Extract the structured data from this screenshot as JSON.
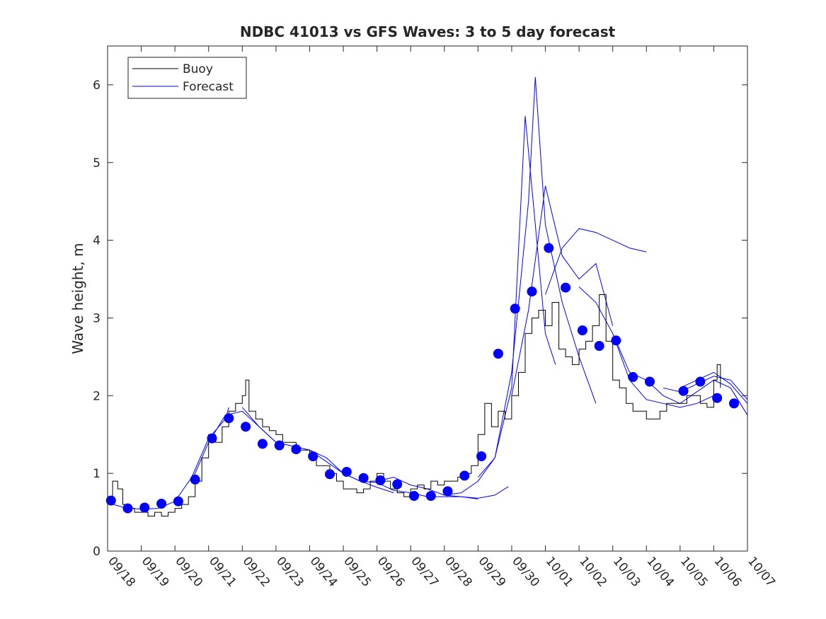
{
  "chart_data": {
    "type": "line",
    "title": "NDBC 41013 vs GFS Waves: 3 to 5 day forecast",
    "xlabel": "",
    "ylabel": "Wave height, m",
    "xlim": [
      0,
      19
    ],
    "ylim": [
      0,
      6.5
    ],
    "x_tick_labels": [
      "09/18",
      "09/19",
      "09/20",
      "09/21",
      "09/22",
      "09/23",
      "09/24",
      "09/25",
      "09/26",
      "09/27",
      "09/28",
      "09/29",
      "09/30",
      "10/01",
      "10/02",
      "10/03",
      "10/04",
      "10/05",
      "10/06",
      "10/07"
    ],
    "y_ticks": [
      0,
      1,
      2,
      3,
      4,
      5,
      6
    ],
    "legend": {
      "position": "top-left",
      "entries": [
        "Buoy",
        "Forecast"
      ]
    },
    "colors": {
      "buoy": "#000000",
      "forecast": "#0000ff",
      "axes": "#262626"
    },
    "buoy_series": {
      "name": "Buoy",
      "x": [
        0.0,
        0.15,
        0.3,
        0.45,
        0.6,
        0.8,
        1.0,
        1.2,
        1.4,
        1.6,
        1.8,
        2.0,
        2.2,
        2.4,
        2.6,
        2.8,
        3.0,
        3.2,
        3.4,
        3.6,
        3.8,
        4.0,
        4.1,
        4.2,
        4.4,
        4.6,
        4.8,
        5.0,
        5.2,
        5.4,
        5.6,
        5.8,
        6.0,
        6.2,
        6.4,
        6.6,
        6.8,
        7.0,
        7.2,
        7.4,
        7.6,
        7.8,
        8.0,
        8.2,
        8.4,
        8.6,
        8.8,
        9.0,
        9.2,
        9.4,
        9.6,
        9.8,
        10.0,
        10.2,
        10.4,
        10.6,
        10.8,
        11.0,
        11.2,
        11.4,
        11.6,
        11.8,
        12.0,
        12.2,
        12.4,
        12.6,
        12.8,
        13.0,
        13.2,
        13.4,
        13.6,
        13.8,
        14.0,
        14.2,
        14.4,
        14.6,
        14.8,
        15.0,
        15.2,
        15.4,
        15.6,
        15.8,
        16.0,
        16.2,
        16.4,
        16.6,
        16.8,
        17.0,
        17.2,
        17.4,
        17.6,
        17.8,
        18.0,
        18.1,
        18.2
      ],
      "y": [
        0.7,
        0.9,
        0.8,
        0.6,
        0.55,
        0.5,
        0.5,
        0.45,
        0.5,
        0.45,
        0.5,
        0.55,
        0.6,
        0.7,
        0.9,
        1.2,
        1.5,
        1.4,
        1.6,
        1.8,
        1.9,
        2.0,
        2.2,
        1.8,
        1.7,
        1.6,
        1.55,
        1.5,
        1.4,
        1.4,
        1.3,
        1.3,
        1.2,
        1.1,
        1.1,
        1.0,
        0.9,
        0.8,
        0.8,
        0.75,
        0.8,
        0.9,
        1.0,
        0.9,
        0.8,
        0.75,
        0.7,
        0.8,
        0.85,
        0.8,
        0.9,
        0.85,
        0.9,
        0.9,
        0.95,
        1.0,
        1.1,
        1.5,
        1.9,
        1.6,
        1.8,
        1.7,
        2.0,
        2.3,
        2.8,
        3.0,
        3.1,
        2.9,
        3.2,
        2.6,
        2.5,
        2.4,
        2.6,
        2.7,
        2.9,
        3.3,
        2.7,
        2.2,
        2.1,
        1.9,
        1.8,
        1.8,
        1.7,
        1.7,
        1.8,
        1.9,
        1.9,
        1.9,
        2.0,
        2.0,
        1.9,
        1.85,
        2.2,
        2.4,
        2.1
      ]
    },
    "forecast_series": [
      {
        "name": "Forecast",
        "x": [
          0.0,
          0.5,
          1.0,
          1.5,
          2.0,
          2.5,
          3.0,
          3.5,
          3.6
        ],
        "y": [
          0.62,
          0.56,
          0.54,
          0.55,
          0.64,
          0.95,
          1.45,
          1.7,
          1.85
        ]
      },
      {
        "name": "Forecast",
        "x": [
          2.5,
          3.0,
          3.5,
          4.0,
          4.5,
          5.0,
          5.5,
          6.0
        ],
        "y": [
          0.9,
          1.4,
          1.75,
          1.8,
          1.6,
          1.4,
          1.35,
          1.3
        ]
      },
      {
        "name": "Forecast",
        "x": [
          4.0,
          4.5,
          5.0,
          5.5,
          6.0,
          6.5,
          7.0,
          7.5,
          8.0,
          8.5
        ],
        "y": [
          1.85,
          1.6,
          1.4,
          1.35,
          1.3,
          1.15,
          1.0,
          0.9,
          0.82,
          0.75
        ]
      },
      {
        "name": "Forecast",
        "x": [
          6.0,
          6.5,
          7.0,
          7.5,
          8.0,
          8.5,
          9.0,
          9.5,
          10.0,
          10.5,
          11.0
        ],
        "y": [
          1.3,
          1.2,
          1.0,
          0.9,
          0.88,
          0.78,
          0.75,
          0.7,
          0.7,
          0.7,
          0.67
        ]
      },
      {
        "name": "Forecast",
        "x": [
          8.0,
          8.5,
          9.0,
          9.5,
          10.0,
          10.5,
          11.0,
          11.5,
          11.9
        ],
        "y": [
          0.9,
          0.95,
          0.85,
          0.8,
          0.72,
          0.7,
          0.68,
          0.72,
          0.83
        ]
      },
      {
        "name": "Forecast",
        "x": [
          10.0,
          10.5,
          11.0,
          11.5,
          12.0,
          12.4,
          12.7,
          13.0,
          13.3
        ],
        "y": [
          0.72,
          0.75,
          0.9,
          1.2,
          2.1,
          5.6,
          4.2,
          2.8,
          2.4
        ]
      },
      {
        "name": "Forecast",
        "x": [
          11.0,
          11.5,
          12.0,
          12.5,
          12.7,
          13.0,
          13.5,
          14.0,
          14.5
        ],
        "y": [
          0.95,
          1.2,
          2.3,
          4.5,
          6.1,
          4.2,
          3.2,
          2.5,
          1.9
        ]
      },
      {
        "name": "Forecast",
        "x": [
          12.0,
          12.5,
          13.0,
          13.5,
          14.0,
          14.5,
          15.0
        ],
        "y": [
          2.0,
          3.1,
          4.7,
          3.8,
          3.5,
          3.7,
          2.9
        ]
      },
      {
        "name": "Forecast",
        "x": [
          13.0,
          13.5,
          14.0,
          14.5,
          15.0,
          15.5,
          16.0
        ],
        "y": [
          3.3,
          3.9,
          4.15,
          4.1,
          4.0,
          3.9,
          3.85
        ]
      },
      {
        "name": "Forecast",
        "x": [
          14.0,
          14.5,
          15.0,
          15.5,
          16.0,
          16.5,
          17.0,
          17.5,
          18.0
        ],
        "y": [
          3.4,
          3.2,
          2.8,
          2.2,
          1.95,
          1.9,
          1.85,
          1.9,
          2.0
        ]
      },
      {
        "name": "Forecast",
        "x": [
          15.0,
          15.5,
          16.0,
          16.5,
          17.0,
          17.5,
          18.0,
          18.5,
          19.0
        ],
        "y": [
          2.8,
          2.3,
          2.2,
          2.0,
          1.9,
          2.05,
          2.2,
          2.1,
          1.75
        ]
      },
      {
        "name": "Forecast",
        "x": [
          16.5,
          17.0,
          17.5,
          18.0,
          18.5,
          19.0
        ],
        "y": [
          2.1,
          2.05,
          2.15,
          2.25,
          2.2,
          1.95
        ]
      },
      {
        "name": "Forecast",
        "x": [
          17.0,
          17.5,
          18.0,
          18.5,
          19.0
        ],
        "y": [
          2.1,
          2.2,
          2.3,
          2.15,
          1.9
        ]
      }
    ],
    "forecast_markers": {
      "x": [
        0.1,
        0.6,
        1.1,
        1.6,
        2.1,
        2.6,
        3.1,
        3.6,
        4.1,
        4.6,
        5.1,
        5.6,
        6.1,
        6.6,
        7.1,
        7.6,
        8.1,
        8.6,
        9.1,
        9.6,
        10.1,
        10.6,
        11.1,
        11.6,
        12.1,
        12.6,
        13.1,
        13.6,
        14.1,
        14.6,
        15.1,
        15.6,
        16.1,
        17.1,
        17.6,
        18.1,
        18.6
      ],
      "y": [
        0.65,
        0.55,
        0.56,
        0.61,
        0.64,
        0.92,
        1.45,
        1.71,
        1.6,
        1.38,
        1.36,
        1.31,
        1.22,
        0.99,
        1.02,
        0.94,
        0.91,
        0.86,
        0.71,
        0.71,
        0.77,
        0.97,
        1.22,
        2.54,
        3.12,
        3.34,
        3.9,
        3.39,
        2.84,
        2.64,
        2.71,
        2.24,
        2.18,
        2.06,
        2.18,
        1.97,
        1.9
      ]
    }
  }
}
